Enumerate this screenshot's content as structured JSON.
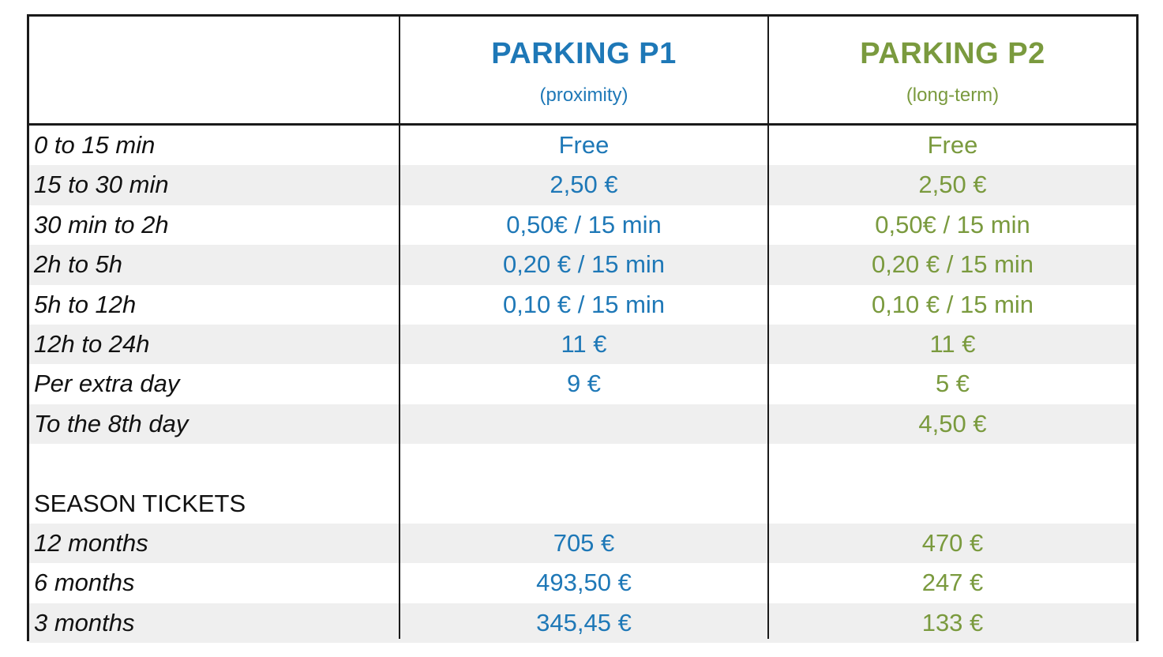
{
  "header": {
    "p1_title": "PARKING P1",
    "p1_subtitle": "(proximity)",
    "p2_title": "PARKING P2",
    "p2_subtitle": "(long-term)"
  },
  "rows": [
    {
      "label": "0 to 15 min",
      "p1": "Free",
      "p2": "Free"
    },
    {
      "label": "15 to 30 min",
      "p1": "2,50 €",
      "p2": "2,50 €"
    },
    {
      "label": "30 min to 2h",
      "p1": "0,50€ / 15 min",
      "p2": "0,50€ / 15 min"
    },
    {
      "label": "2h to 5h",
      "p1": "0,20 € / 15 min",
      "p2": "0,20 € / 15 min"
    },
    {
      "label": "5h to 12h",
      "p1": "0,10 € / 15 min",
      "p2": "0,10 € / 15 min"
    },
    {
      "label": "12h to 24h",
      "p1": "11 €",
      "p2": "11 €"
    },
    {
      "label": "Per extra day",
      "p1": "9 €",
      "p2": "5 €"
    },
    {
      "label": "To the 8th day",
      "p1": "",
      "p2": "4,50 €"
    },
    {
      "label": "",
      "p1": "",
      "p2": ""
    },
    {
      "label": "SEASON TICKETS",
      "p1": "",
      "p2": ""
    },
    {
      "label": "12 months",
      "p1": "705 €",
      "p2": "470 €"
    },
    {
      "label": "6 months",
      "p1": "493,50 €",
      "p2": "247 €"
    },
    {
      "label": "3 months",
      "p1": "345,45 €",
      "p2": "133 €"
    }
  ],
  "colors": {
    "p1": "#1e78b7",
    "p2": "#7a9a3e",
    "row_shade": "#efefef",
    "border": "#1a1a1a"
  }
}
